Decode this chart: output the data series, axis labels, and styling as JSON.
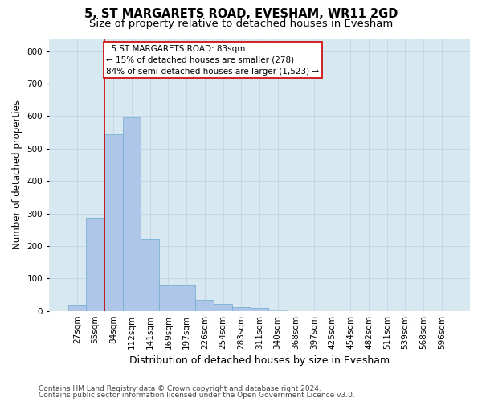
{
  "title": "5, ST MARGARETS ROAD, EVESHAM, WR11 2GD",
  "subtitle": "Size of property relative to detached houses in Evesham",
  "xlabel": "Distribution of detached houses by size in Evesham",
  "ylabel": "Number of detached properties",
  "footnote1": "Contains HM Land Registry data © Crown copyright and database right 2024.",
  "footnote2": "Contains public sector information licensed under the Open Government Licence v3.0.",
  "bar_labels": [
    "27sqm",
    "55sqm",
    "84sqm",
    "112sqm",
    "141sqm",
    "169sqm",
    "197sqm",
    "226sqm",
    "254sqm",
    "283sqm",
    "311sqm",
    "340sqm",
    "368sqm",
    "397sqm",
    "425sqm",
    "454sqm",
    "482sqm",
    "511sqm",
    "539sqm",
    "568sqm",
    "596sqm"
  ],
  "bar_heights": [
    20,
    287,
    543,
    597,
    222,
    79,
    79,
    33,
    22,
    11,
    8,
    5,
    0,
    0,
    0,
    0,
    0,
    0,
    0,
    0,
    0
  ],
  "bar_color": "#aec6e8",
  "bar_edge_color": "#7aafd4",
  "property_line_color": "#cc0000",
  "annotation_text": "  5 ST MARGARETS ROAD: 83sqm\n← 15% of detached houses are smaller (278)\n84% of semi-detached houses are larger (1,523) →",
  "annotation_box_color": "#ffffff",
  "annotation_box_edge_color": "#cc0000",
  "ylim": [
    0,
    840
  ],
  "yticks": [
    0,
    100,
    200,
    300,
    400,
    500,
    600,
    700,
    800
  ],
  "grid_color": "#c0d4e8",
  "plot_bg_color": "#d8e8f0",
  "title_fontsize": 10.5,
  "subtitle_fontsize": 9.5,
  "annotation_fontsize": 7.5,
  "tick_fontsize": 7.5,
  "ylabel_fontsize": 8.5,
  "xlabel_fontsize": 9
}
